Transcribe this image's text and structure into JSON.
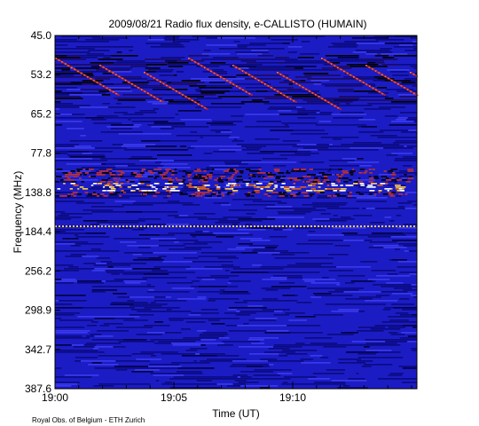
{
  "chart_data": {
    "type": "spectrogram",
    "title": "2009/08/21  Radio flux density, e-CALLISTO (HUMAIN)",
    "xlabel": "Time (UT)",
    "ylabel": "Frequency (MHz)",
    "footer": "Royal Obs. of Belgium - ETH Zurich",
    "x_tick_labels": [
      "19:00",
      "19:05",
      "19:10"
    ],
    "y_tick_labels": [
      "45.0",
      "53.2",
      "65.2",
      "77.8",
      "138.8",
      "184.4",
      "256.2",
      "298.9",
      "342.7",
      "387.6"
    ]
  }
}
